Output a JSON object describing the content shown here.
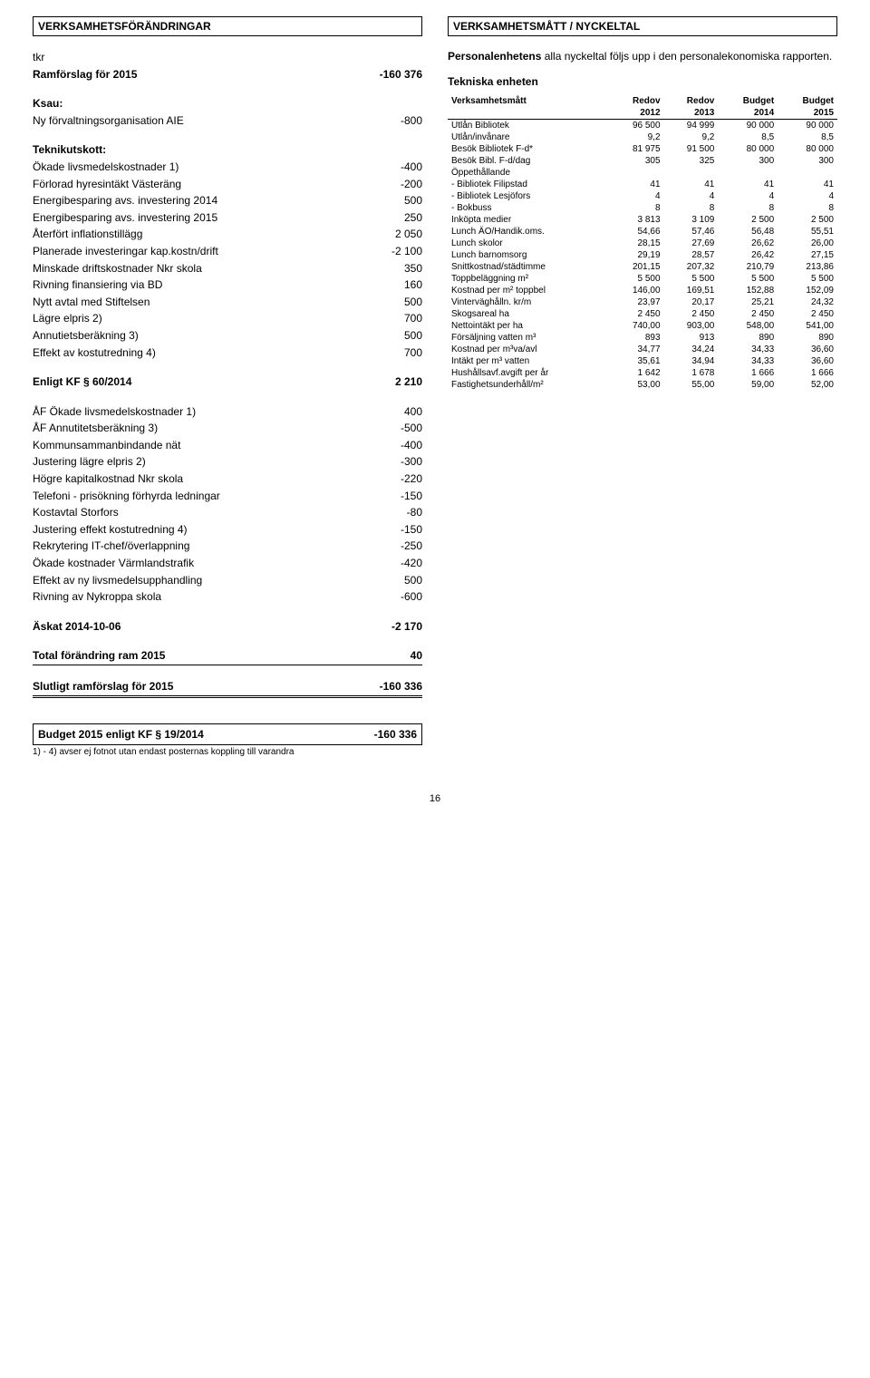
{
  "left": {
    "header": "VERKSAMHETSFÖRÄNDRINGAR",
    "tkr": "tkr",
    "ramforslag_label": "Ramförslag för 2015",
    "ramforslag_val": "-160 376",
    "ksau": "Ksau:",
    "rows1": [
      {
        "label": "Ny förvaltningsorganisation AIE",
        "val": "-800"
      }
    ],
    "teknik": "Teknikutskott:",
    "rows2": [
      {
        "label": "Ökade livsmedelskostnader 1)",
        "val": "-400"
      },
      {
        "label": "Förlorad hyresintäkt Västeräng",
        "val": "-200"
      },
      {
        "label": "Energibesparing avs. investering 2014",
        "val": "500"
      },
      {
        "label": "Energibesparing avs. investering 2015",
        "val": "250"
      },
      {
        "label": "Återfört inflationstillägg",
        "val": "2 050"
      },
      {
        "label": "Planerade investeringar kap.kostn/drift",
        "val": "-2 100"
      },
      {
        "label": "Minskade driftskostnader Nkr skola",
        "val": "350"
      },
      {
        "label": "Rivning finansiering via BD",
        "val": "160"
      },
      {
        "label": "Nytt avtal med Stiftelsen",
        "val": "500"
      },
      {
        "label": "Lägre elpris 2)",
        "val": "700"
      },
      {
        "label": "Annutietsberäkning 3)",
        "val": "500"
      },
      {
        "label": "Effekt av kostutredning 4)",
        "val": "700"
      }
    ],
    "enligt_label": "Enligt KF § 60/2014",
    "enligt_val": "2 210",
    "rows3": [
      {
        "label": "ÅF Ökade livsmedelskostnader 1)",
        "val": "400"
      },
      {
        "label": "ÅF Annutitetsberäkning 3)",
        "val": "-500"
      },
      {
        "label": "Kommunsammanbindande nät",
        "val": "-400"
      },
      {
        "label": "Justering lägre elpris 2)",
        "val": "-300"
      },
      {
        "label": "Högre kapitalkostnad Nkr skola",
        "val": "-220"
      },
      {
        "label": "Telefoni - prisökning förhyrda ledningar",
        "val": "-150"
      },
      {
        "label": "Kostavtal Storfors",
        "val": "-80"
      },
      {
        "label": "Justering effekt kostutredning 4)",
        "val": "-150"
      },
      {
        "label": "Rekrytering IT-chef/överlappning",
        "val": "-250"
      },
      {
        "label": "Ökade kostnader Värmlandstrafik",
        "val": "-420"
      },
      {
        "label": "Effekt av ny livsmedelsupphandling",
        "val": "500"
      },
      {
        "label": "Rivning av Nykroppa skola",
        "val": "-600"
      }
    ],
    "askat_label": "Äskat 2014-10-06",
    "askat_val": "-2 170",
    "total_label": "Total förändring ram 2015",
    "total_val": "40",
    "slutligt_label": "Slutligt ramförslag för 2015",
    "slutligt_val": "-160 336",
    "budget_label": "Budget 2015 enligt KF § 19/2014",
    "budget_val": "-160 336",
    "footnote": "1) - 4) avser ej fotnot utan endast posternas koppling till varandra"
  },
  "right": {
    "header": "VERKSAMHETSMÅTT / NYCKELTAL",
    "intro1": "Personalenhetens",
    "intro2": " alla nyckeltal följs upp i den personalekonomiska rapporten.",
    "tekniska": "Tekniska enheten",
    "thead1": [
      "Verksamhetsmått",
      "Redov",
      "Redov",
      "Budget",
      "Budget"
    ],
    "thead2": [
      "",
      "2012",
      "2013",
      "2014",
      "2015"
    ],
    "rows": [
      [
        "Utlån Bibliotek",
        "96 500",
        "94 999",
        "90 000",
        "90 000"
      ],
      [
        "Utlån/invånare",
        "9,2",
        "9,2",
        "8,5",
        "8,5"
      ],
      [
        "Besök Bibliotek F-d*",
        "81 975",
        "91 500",
        "80 000",
        "80 000"
      ],
      [
        "Besök Bibl. F-d/dag",
        "305",
        "325",
        "300",
        "300"
      ],
      [
        "Öppethållande",
        "",
        "",
        "",
        ""
      ],
      [
        "- Bibliotek Filipstad",
        "41",
        "41",
        "41",
        "41"
      ],
      [
        "- Bibliotek Lesjöfors",
        "4",
        "4",
        "4",
        "4"
      ],
      [
        "- Bokbuss",
        "8",
        "8",
        "8",
        "8"
      ],
      [
        "Inköpta medier",
        "3 813",
        "3 109",
        "2 500",
        "2 500"
      ],
      [
        "Lunch ÄO/Handik.oms.",
        "54,66",
        "57,46",
        "56,48",
        "55,51"
      ],
      [
        "Lunch skolor",
        "28,15",
        "27,69",
        "26,62",
        "26,00"
      ],
      [
        "Lunch barnomsorg",
        "29,19",
        "28,57",
        "26,42",
        "27,15"
      ],
      [
        "Snittkostnad/städtimme",
        "201,15",
        "207,32",
        "210,79",
        "213,86"
      ],
      [
        "Toppbeläggning m²",
        "5 500",
        "5 500",
        "5 500",
        "5 500"
      ],
      [
        "Kostnad per m² toppbel",
        "146,00",
        "169,51",
        "152,88",
        "152,09"
      ],
      [
        "Vinterväghålln. kr/m",
        "23,97",
        "20,17",
        "25,21",
        "24,32"
      ],
      [
        "Skogsareal ha",
        "2 450",
        "2 450",
        "2 450",
        "2 450"
      ],
      [
        "Nettointäkt per ha",
        "740,00",
        "903,00",
        "548,00",
        "541,00"
      ],
      [
        "Försäljning vatten m³",
        "893",
        "913",
        "890",
        "890"
      ],
      [
        "Kostnad per m³va/avl",
        "34,77",
        "34,24",
        "34,33",
        "36,60"
      ],
      [
        "Intäkt per m³ vatten",
        "35,61",
        "34,94",
        "34,33",
        "36,60"
      ],
      [
        "Hushållsavf.avgift per år",
        "1 642",
        "1 678",
        "1 666",
        "1 666"
      ],
      [
        "Fastighetsunderhåll/m²",
        "53,00",
        "55,00",
        "59,00",
        "52,00"
      ]
    ]
  },
  "pagenum": "16"
}
